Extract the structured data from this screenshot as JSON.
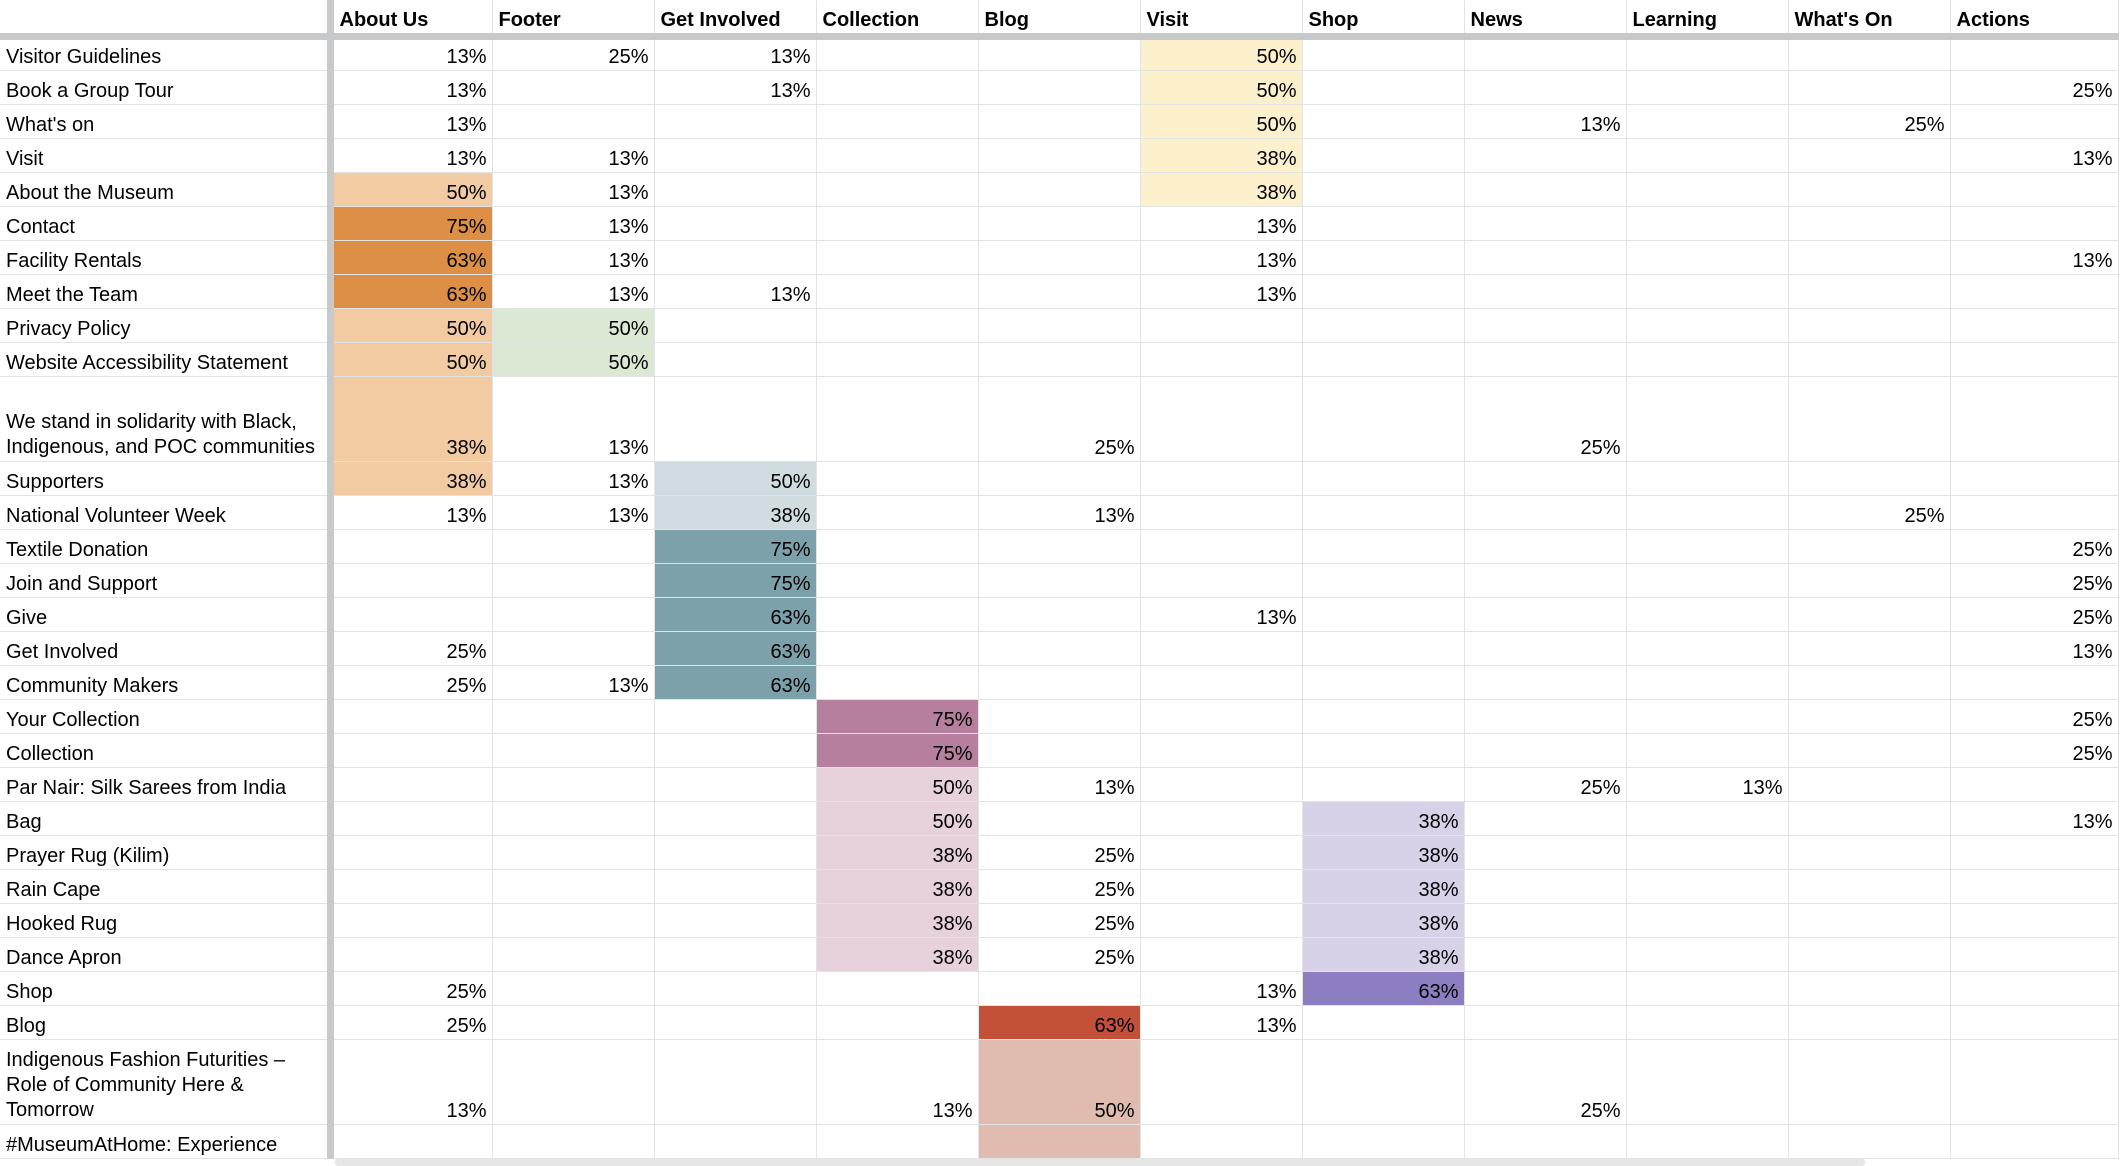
{
  "columns": [
    "About Us",
    "Footer",
    "Get Involved",
    "Collection",
    "Blog",
    "Visit",
    "Shop",
    "News",
    "Learning",
    "What's On",
    "Actions"
  ],
  "rows": [
    {
      "label": "Visitor Guidelines",
      "cells": [
        "13%",
        "25%",
        "13%",
        "",
        "",
        "50%",
        "",
        "",
        "",
        "",
        ""
      ]
    },
    {
      "label": "Book a Group Tour",
      "cells": [
        "13%",
        "",
        "13%",
        "",
        "",
        "50%",
        "",
        "",
        "",
        "",
        "25%"
      ]
    },
    {
      "label": "What's on",
      "cells": [
        "13%",
        "",
        "",
        "",
        "",
        "50%",
        "",
        "13%",
        "",
        "25%",
        ""
      ]
    },
    {
      "label": "Visit",
      "cells": [
        "13%",
        "13%",
        "",
        "",
        "",
        "38%",
        "",
        "",
        "",
        "",
        "13%"
      ]
    },
    {
      "label": "About the Museum",
      "cells": [
        "50%",
        "13%",
        "",
        "",
        "",
        "38%",
        "",
        "",
        "",
        "",
        ""
      ]
    },
    {
      "label": "Contact",
      "cells": [
        "75%",
        "13%",
        "",
        "",
        "",
        "13%",
        "",
        "",
        "",
        "",
        ""
      ]
    },
    {
      "label": "Facility Rentals",
      "cells": [
        "63%",
        "13%",
        "",
        "",
        "",
        "13%",
        "",
        "",
        "",
        "",
        "13%"
      ]
    },
    {
      "label": "Meet the Team",
      "cells": [
        "63%",
        "13%",
        "13%",
        "",
        "",
        "13%",
        "",
        "",
        "",
        "",
        ""
      ]
    },
    {
      "label": "Privacy Policy",
      "cells": [
        "50%",
        "50%",
        "",
        "",
        "",
        "",
        "",
        "",
        "",
        "",
        ""
      ]
    },
    {
      "label": "Website Accessibility Statement",
      "cells": [
        "50%",
        "50%",
        "",
        "",
        "",
        "",
        "",
        "",
        "",
        "",
        ""
      ]
    },
    {
      "label": "We stand in solidarity with Black, Indigenous, and POC communities",
      "cells": [
        "38%",
        "13%",
        "",
        "",
        "25%",
        "",
        "",
        "25%",
        "",
        "",
        ""
      ]
    },
    {
      "label": "Supporters",
      "cells": [
        "38%",
        "13%",
        "50%",
        "",
        "",
        "",
        "",
        "",
        "",
        "",
        ""
      ]
    },
    {
      "label": "National Volunteer Week",
      "cells": [
        "13%",
        "13%",
        "38%",
        "",
        "13%",
        "",
        "",
        "",
        "",
        "25%",
        ""
      ]
    },
    {
      "label": "Textile Donation",
      "cells": [
        "",
        "",
        "75%",
        "",
        "",
        "",
        "",
        "",
        "",
        "",
        "25%"
      ]
    },
    {
      "label": "Join and Support",
      "cells": [
        "",
        "",
        "75%",
        "",
        "",
        "",
        "",
        "",
        "",
        "",
        "25%"
      ]
    },
    {
      "label": "Give",
      "cells": [
        "",
        "",
        "63%",
        "",
        "",
        "13%",
        "",
        "",
        "",
        "",
        "25%"
      ]
    },
    {
      "label": "Get Involved",
      "cells": [
        "25%",
        "",
        "63%",
        "",
        "",
        "",
        "",
        "",
        "",
        "",
        "13%"
      ]
    },
    {
      "label": "Community Makers",
      "cells": [
        "25%",
        "13%",
        "63%",
        "",
        "",
        "",
        "",
        "",
        "",
        "",
        ""
      ]
    },
    {
      "label": "Your Collection",
      "cells": [
        "",
        "",
        "",
        "75%",
        "",
        "",
        "",
        "",
        "",
        "",
        "25%"
      ]
    },
    {
      "label": "Collection",
      "cells": [
        "",
        "",
        "",
        "75%",
        "",
        "",
        "",
        "",
        "",
        "",
        "25%"
      ]
    },
    {
      "label": "Par Nair: Silk Sarees from India",
      "cells": [
        "",
        "",
        "",
        "50%",
        "13%",
        "",
        "",
        "25%",
        "13%",
        "",
        ""
      ]
    },
    {
      "label": "Bag",
      "cells": [
        "",
        "",
        "",
        "50%",
        "",
        "",
        "38%",
        "",
        "",
        "",
        "13%"
      ]
    },
    {
      "label": "Prayer Rug (Kilim)",
      "cells": [
        "",
        "",
        "",
        "38%",
        "25%",
        "",
        "38%",
        "",
        "",
        "",
        ""
      ]
    },
    {
      "label": "Rain Cape",
      "cells": [
        "",
        "",
        "",
        "38%",
        "25%",
        "",
        "38%",
        "",
        "",
        "",
        ""
      ]
    },
    {
      "label": "Hooked Rug",
      "cells": [
        "",
        "",
        "",
        "38%",
        "25%",
        "",
        "38%",
        "",
        "",
        "",
        ""
      ]
    },
    {
      "label": "Dance Apron",
      "cells": [
        "",
        "",
        "",
        "38%",
        "25%",
        "",
        "38%",
        "",
        "",
        "",
        ""
      ]
    },
    {
      "label": "Shop",
      "cells": [
        "25%",
        "",
        "",
        "",
        "",
        "13%",
        "63%",
        "",
        "",
        "",
        ""
      ]
    },
    {
      "label": "Blog",
      "cells": [
        "25%",
        "",
        "",
        "",
        "63%",
        "13%",
        "",
        "",
        "",
        "",
        ""
      ]
    },
    {
      "label": "Indigenous Fashion Futurities – Role of Community Here & Tomorrow",
      "cells": [
        "13%",
        "",
        "",
        "13%",
        "50%",
        "",
        "",
        "25%",
        "",
        "",
        ""
      ]
    },
    {
      "label": "#MuseumAtHome: Experience",
      "cells": [
        "",
        "",
        "",
        "",
        "",
        "",
        "",
        "",
        "",
        "",
        ""
      ]
    }
  ],
  "highlights": [
    {
      "row": 0,
      "col": 5,
      "color": "#fdf1cd"
    },
    {
      "row": 1,
      "col": 5,
      "color": "#fdf1cd"
    },
    {
      "row": 2,
      "col": 5,
      "color": "#fdf1cd"
    },
    {
      "row": 3,
      "col": 5,
      "color": "#fdf1cd"
    },
    {
      "row": 4,
      "col": 5,
      "color": "#fdf1cd"
    },
    {
      "row": 4,
      "col": 0,
      "color": "#f3cba3"
    },
    {
      "row": 5,
      "col": 0,
      "color": "#dc8f45"
    },
    {
      "row": 6,
      "col": 0,
      "color": "#dc8f45"
    },
    {
      "row": 7,
      "col": 0,
      "color": "#dc8f45"
    },
    {
      "row": 8,
      "col": 0,
      "color": "#f3cba3"
    },
    {
      "row": 9,
      "col": 0,
      "color": "#f3cba3"
    },
    {
      "row": 10,
      "col": 0,
      "color": "#f3cba3"
    },
    {
      "row": 11,
      "col": 0,
      "color": "#f3cba3"
    },
    {
      "row": 8,
      "col": 1,
      "color": "#dbe9d4"
    },
    {
      "row": 9,
      "col": 1,
      "color": "#dbe9d4"
    },
    {
      "row": 11,
      "col": 2,
      "color": "#d1dce0"
    },
    {
      "row": 12,
      "col": 2,
      "color": "#d1dce0"
    },
    {
      "row": 13,
      "col": 2,
      "color": "#7da1ab"
    },
    {
      "row": 14,
      "col": 2,
      "color": "#7da1ab"
    },
    {
      "row": 15,
      "col": 2,
      "color": "#7da1ab"
    },
    {
      "row": 16,
      "col": 2,
      "color": "#7da1ab"
    },
    {
      "row": 17,
      "col": 2,
      "color": "#7da1ab"
    },
    {
      "row": 18,
      "col": 3,
      "color": "#b77f9e"
    },
    {
      "row": 19,
      "col": 3,
      "color": "#b77f9e"
    },
    {
      "row": 20,
      "col": 3,
      "color": "#e6d1dc"
    },
    {
      "row": 21,
      "col": 3,
      "color": "#e6d1dc"
    },
    {
      "row": 22,
      "col": 3,
      "color": "#e6d1dc"
    },
    {
      "row": 23,
      "col": 3,
      "color": "#e6d1dc"
    },
    {
      "row": 24,
      "col": 3,
      "color": "#e6d1dc"
    },
    {
      "row": 25,
      "col": 3,
      "color": "#e6d1dc"
    },
    {
      "row": 21,
      "col": 6,
      "color": "#d7d2e8"
    },
    {
      "row": 22,
      "col": 6,
      "color": "#d7d2e8"
    },
    {
      "row": 23,
      "col": 6,
      "color": "#d7d2e8"
    },
    {
      "row": 24,
      "col": 6,
      "color": "#d7d2e8"
    },
    {
      "row": 25,
      "col": 6,
      "color": "#d7d2e8"
    },
    {
      "row": 26,
      "col": 6,
      "color": "#8e7dc1"
    },
    {
      "row": 27,
      "col": 4,
      "color": "#c3513a"
    },
    {
      "row": 28,
      "col": 4,
      "color": "#e0bbb0"
    },
    {
      "row": 29,
      "col": 4,
      "color": "#e0bbb0"
    }
  ]
}
